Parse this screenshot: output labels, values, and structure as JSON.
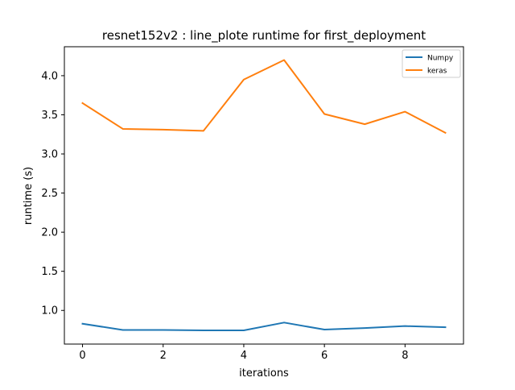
{
  "chart_data": {
    "type": "line",
    "title": "resnet152v2 : line_plote runtime  for first_deployment",
    "xlabel": "iterations",
    "ylabel": "runtime (s)",
    "x": [
      0,
      1,
      2,
      3,
      4,
      5,
      6,
      7,
      8,
      9
    ],
    "xlim": [
      -0.45,
      9.45
    ],
    "ylim": [
      0.57,
      4.37
    ],
    "xticks": [
      0,
      2,
      4,
      6,
      8
    ],
    "yticks": [
      1.0,
      1.5,
      2.0,
      2.5,
      3.0,
      3.5,
      4.0
    ],
    "ytick_labels": [
      "1.0",
      "1.5",
      "2.0",
      "2.5",
      "3.0",
      "3.5",
      "4.0"
    ],
    "grid": false,
    "legend_position": "top-right",
    "series": [
      {
        "name": "Numpy",
        "color": "#1f77b4",
        "values": [
          0.83,
          0.75,
          0.75,
          0.745,
          0.745,
          0.845,
          0.755,
          0.775,
          0.8,
          0.785
        ]
      },
      {
        "name": "keras",
        "color": "#ff7f0e",
        "values": [
          3.65,
          3.32,
          3.31,
          3.295,
          3.95,
          4.2,
          3.51,
          3.38,
          3.54,
          3.27
        ]
      }
    ]
  }
}
